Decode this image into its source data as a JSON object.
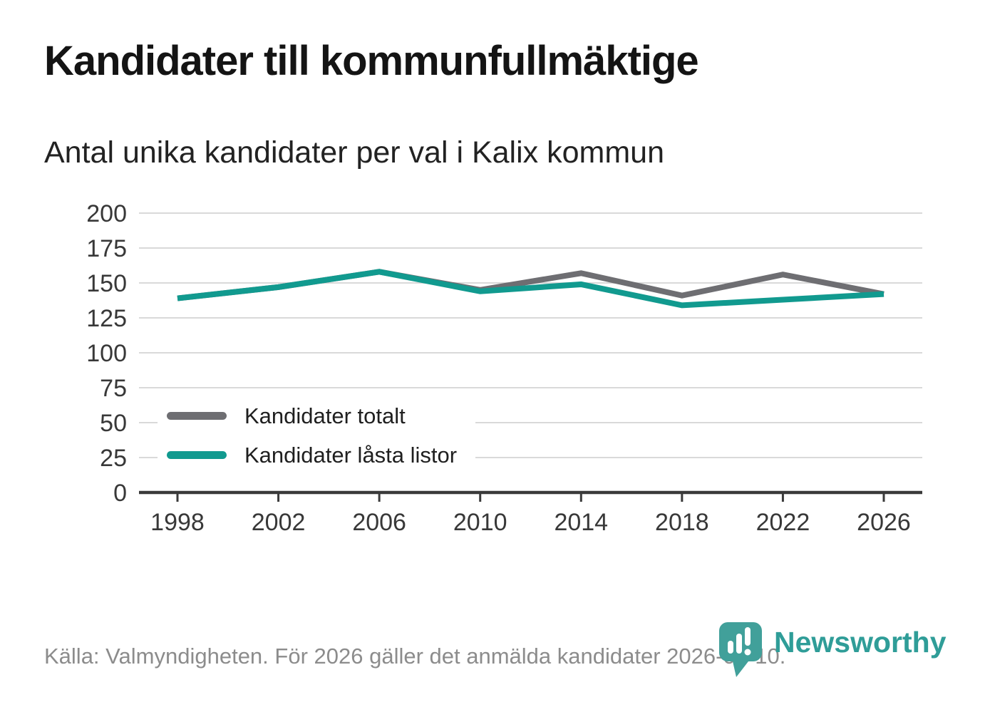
{
  "title": "Kandidater till kommunfullmäktige",
  "subtitle": "Antal unika kandidater per val i Kalix kommun",
  "footer": {
    "source": "Källa: Valmyndigheten. För 2026 gäller det anmälda kandidater 2026-04-10."
  },
  "branding": {
    "name": "Newsworthy",
    "color": "#2f9d98",
    "icon": "newsworthy-speech-bubble-bar-chart-icon"
  },
  "chart_data": {
    "type": "line",
    "title": "Kandidater till kommunfullmäktige",
    "subtitle": "Antal unika kandidater per val i Kalix kommun",
    "x": [
      1998,
      2002,
      2006,
      2010,
      2014,
      2018,
      2022,
      2026
    ],
    "xticks": [
      "1998",
      "2002",
      "2006",
      "2010",
      "2014",
      "2018",
      "2022",
      "2026"
    ],
    "series": [
      {
        "name": "Kandidater totalt",
        "color": "#6e6e72",
        "values": [
          139,
          147,
          158,
          145,
          157,
          141,
          156,
          142
        ]
      },
      {
        "name": "Kandidater låsta listor",
        "color": "#119a8f",
        "values": [
          139,
          147,
          158,
          144,
          149,
          134,
          138,
          142
        ]
      }
    ],
    "ylim": [
      0,
      200
    ],
    "yticks": [
      0,
      25,
      50,
      75,
      100,
      125,
      150,
      175,
      200
    ],
    "grid": true,
    "legend_position": "inside-left-middle",
    "grid_color": "#d9d9d9",
    "axis_color": "#3a3a3a"
  }
}
